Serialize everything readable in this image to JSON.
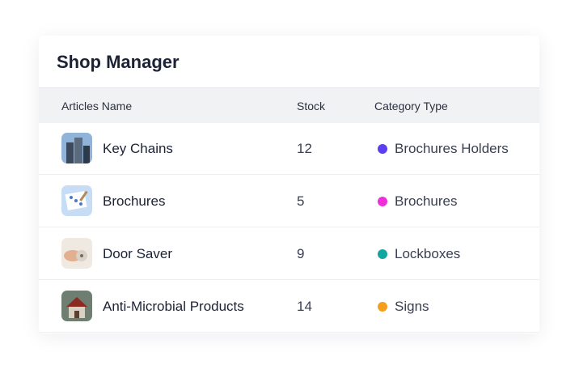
{
  "header": {
    "title": "Shop Manager"
  },
  "table": {
    "columns": [
      "Articles Name",
      "Stock",
      "Category Type"
    ],
    "rows": [
      {
        "name": "Key Chains",
        "stock": 12,
        "category": "Brochures Holders",
        "color": "#5b3ff0"
      },
      {
        "name": "Brochures",
        "stock": 5,
        "category": "Brochures",
        "color": "#ef2fd9"
      },
      {
        "name": "Door Saver",
        "stock": 9,
        "category": "Lockboxes",
        "color": "#12a6a0"
      },
      {
        "name": "Anti-Microbial Products",
        "stock": 14,
        "category": "Signs",
        "color": "#f59e1c"
      }
    ]
  }
}
